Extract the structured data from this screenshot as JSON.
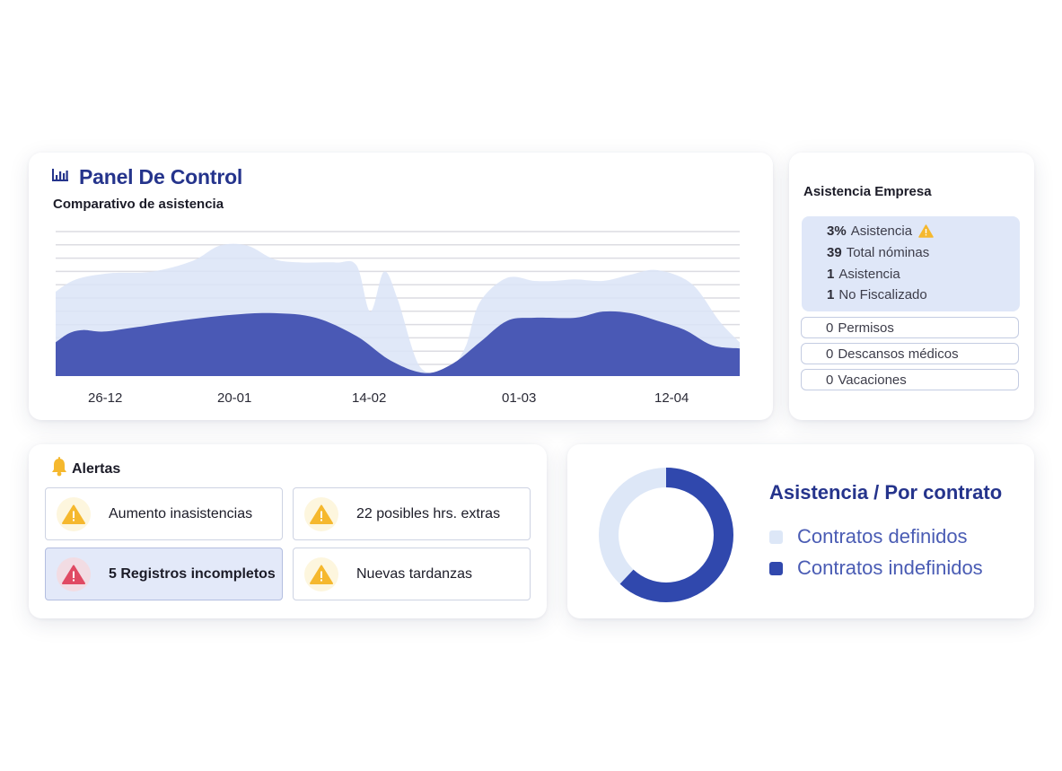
{
  "panel": {
    "title": "Panel De Control",
    "subtitle": "Comparativo de asistencia",
    "icon": "bar-chart-icon"
  },
  "chart_data": {
    "type": "area",
    "title": "Comparativo de asistencia",
    "x_ticks": [
      "26-12",
      "20-01",
      "14-02",
      "01-03",
      "12-04"
    ],
    "grid": true,
    "colors": {
      "back": "#dae4f7",
      "front": "#4a59b5",
      "grid": "#dcdce2"
    },
    "series": [
      {
        "x": [
          0,
          0.03,
          0.08,
          0.14,
          0.2,
          0.24,
          0.28,
          0.32,
          0.36,
          0.41,
          0.44,
          0.46,
          0.48,
          0.5,
          0.53,
          0.56,
          0.58,
          0.6,
          0.62,
          0.66,
          0.7,
          0.73,
          0.76,
          0.8,
          0.84,
          0.88,
          0.93,
          0.97,
          1.0
        ],
        "y": [
          0.55,
          0.63,
          0.67,
          0.68,
          0.75,
          0.85,
          0.85,
          0.76,
          0.74,
          0.74,
          0.72,
          0.42,
          0.68,
          0.5,
          0.08,
          0.02,
          0.06,
          0.2,
          0.48,
          0.64,
          0.62,
          0.62,
          0.63,
          0.62,
          0.66,
          0.69,
          0.6,
          0.36,
          0.22
        ]
      },
      {
        "x": [
          0,
          0.02,
          0.04,
          0.07,
          0.12,
          0.18,
          0.26,
          0.32,
          0.38,
          0.44,
          0.49,
          0.54,
          0.58,
          0.62,
          0.66,
          0.7,
          0.76,
          0.8,
          0.84,
          0.88,
          0.92,
          0.96,
          1.0
        ],
        "y": [
          0.22,
          0.28,
          0.3,
          0.29,
          0.32,
          0.36,
          0.4,
          0.41,
          0.38,
          0.26,
          0.1,
          0.02,
          0.08,
          0.22,
          0.36,
          0.38,
          0.38,
          0.42,
          0.41,
          0.36,
          0.3,
          0.2,
          0.18
        ]
      }
    ]
  },
  "company": {
    "title": "Asistencia Empresa",
    "stats": [
      {
        "num": "3%",
        "label": "Asistencia",
        "warn": true
      },
      {
        "num": "39",
        "label": "Total nóminas",
        "warn": false
      },
      {
        "num": "1",
        "label": "Asistencia",
        "warn": false
      },
      {
        "num": "1",
        "label": "No Fiscalizado",
        "warn": false
      }
    ],
    "pills": [
      {
        "num": "0",
        "label": "Permisos"
      },
      {
        "num": "0",
        "label": "Descansos médicos"
      },
      {
        "num": "0",
        "label": "Vacaciones"
      }
    ]
  },
  "alerts": {
    "title": "Alertas",
    "items": [
      {
        "text": "Aumento inasistencias",
        "level": "warning"
      },
      {
        "text": "22 posibles hrs. extras",
        "level": "warning"
      },
      {
        "text": "5 Registros incompletos",
        "level": "danger"
      },
      {
        "text": "Nuevas tardanzas",
        "level": "warning"
      }
    ]
  },
  "contracts": {
    "title": "Asistencia / Por contrato",
    "legend": [
      {
        "label": "Contratos definidos",
        "color": "#dde7f7"
      },
      {
        "label": "Contratos indefinidos",
        "color": "#3048ad"
      }
    ],
    "donut": {
      "definidos_pct": 38,
      "indefinidos_pct": 62
    }
  }
}
